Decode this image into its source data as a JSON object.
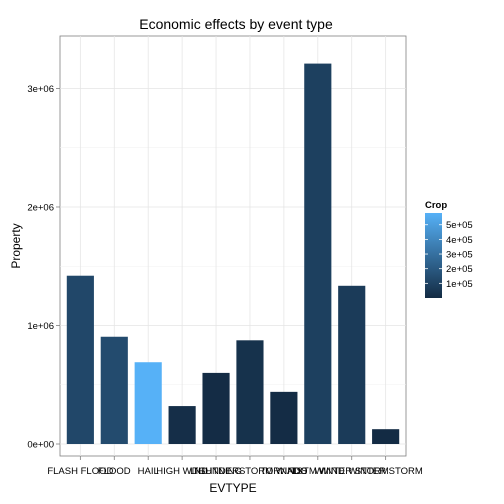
{
  "chart_data": {
    "type": "bar",
    "title": "Economic effects by event type",
    "xlabel": "EVTYPE",
    "ylabel": "Property",
    "categories": [
      "FLASH FLOOD",
      "FLOOD",
      "HAIL",
      "HIGH WIND",
      "LIGHTNING",
      "THUNDERSTORM WINDS",
      "TORNADO",
      "TSTM WIND",
      "WINTER STORM",
      "WINTER STORM"
    ],
    "values": [
      1420000,
      905000,
      690000,
      320000,
      600000,
      875000,
      440000,
      3210000,
      1335000,
      125000
    ],
    "crop": [
      122000,
      140000,
      580000,
      15000,
      5000,
      30000,
      5000,
      90000,
      70000,
      2000
    ],
    "ylim": [
      0,
      3350000
    ],
    "yticks": [
      0,
      1000000,
      2000000,
      3000000
    ],
    "ytick_labels": [
      "0e+00",
      "1e+06",
      "2e+06",
      "3e+06"
    ],
    "grid": true,
    "legend": {
      "title": "Crop",
      "placement": "right",
      "range": [
        0,
        580000
      ],
      "ticks": [
        100000,
        200000,
        300000,
        400000,
        500000
      ],
      "tick_labels": [
        "1e+05",
        "2e+05",
        "3e+05",
        "4e+05",
        "5e+05"
      ],
      "low_color": "#132B43",
      "high_color": "#56B1F7"
    }
  }
}
